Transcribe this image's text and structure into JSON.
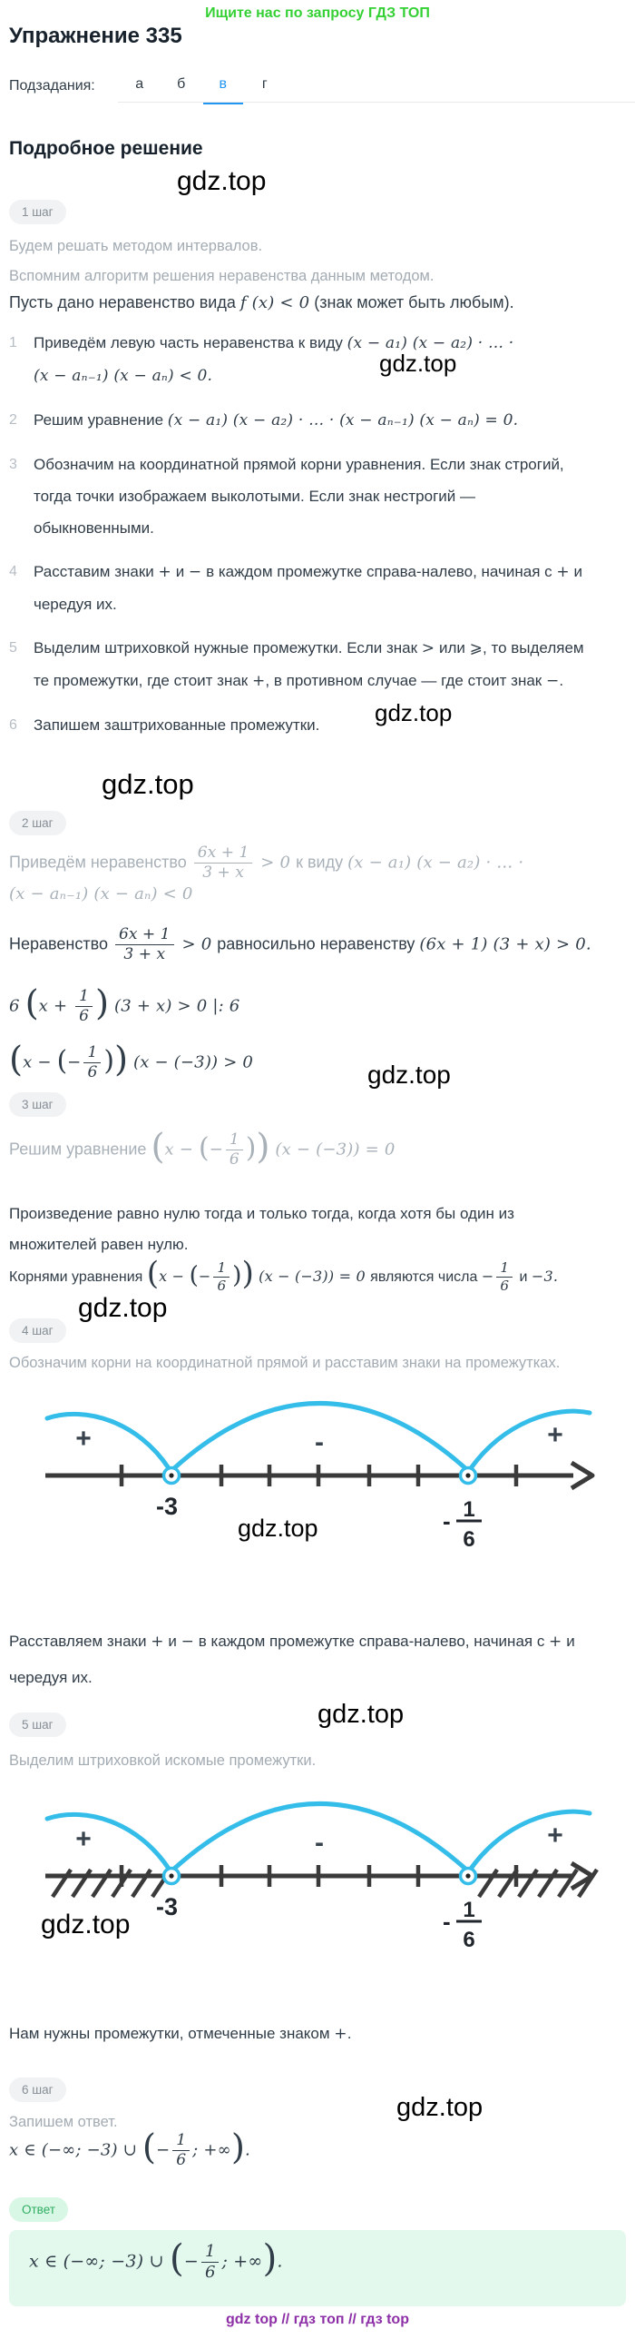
{
  "watermark": "gdz.top",
  "header": {
    "promo": "Ищите нас по запросу ГДЗ ТОП",
    "title": "Упражнение 335",
    "subtasks_label": "Подзадания:",
    "tabs": [
      {
        "label": "а",
        "active": false
      },
      {
        "label": "б",
        "active": false
      },
      {
        "label": "в",
        "active": true
      },
      {
        "label": "г",
        "active": false
      }
    ]
  },
  "solution_heading": "Подробное решение",
  "steps": {
    "s1": {
      "badge": "1 шаг",
      "p1": "Будем решать методом интервалов.",
      "p2": "Вспомним алгоритм решения неравенства данным методом.",
      "intro": [
        {
          "rm": "Пусть дано неравенство вида "
        },
        {
          "m": "f (x) < 0"
        },
        {
          "rm": " (знак может быть любым)."
        }
      ],
      "list": [
        {
          "num": "1",
          "tokens": [
            {
              "rm": "Приведём левую часть неравенства к виду "
            },
            {
              "m": "(x − a₁) (x − a₂) · … ·"
            },
            {
              "br": true
            },
            {
              "m": "(x − aₙ₋₁) (x − aₙ) < 0."
            }
          ]
        },
        {
          "num": "2",
          "tokens": [
            {
              "rm": "Решим уравнение "
            },
            {
              "m": "(x − a₁) (x − a₂) · … · (x − aₙ₋₁) (x − aₙ) = 0."
            }
          ]
        },
        {
          "num": "3",
          "tokens": [
            {
              "rm": "Обозначим на координатной прямой корни уравнения. Если знак строгий, тогда точки изображаем выколотыми. Если знак нестрогий — обыкновенными."
            }
          ]
        },
        {
          "num": "4",
          "tokens": [
            {
              "rm": "Расставим знаки "
            },
            {
              "m": "+"
            },
            {
              "rm": " и "
            },
            {
              "m": "−"
            },
            {
              "rm": " в каждом промежутке справа-налево, начиная с "
            },
            {
              "m": "+"
            },
            {
              "rm": " и чередуя их."
            }
          ]
        },
        {
          "num": "5",
          "tokens": [
            {
              "rm": "Выделим штриховкой нужные промежутки. Если знак "
            },
            {
              "m": ">"
            },
            {
              "rm": " или "
            },
            {
              "m": "⩾"
            },
            {
              "rm": ", то выделяем те промежутки, где стоит знак "
            },
            {
              "m": "+"
            },
            {
              "rm": ", в противном случае — где стоит знак "
            },
            {
              "m": "−"
            },
            {
              "rm": "."
            }
          ]
        },
        {
          "num": "6",
          "tokens": [
            {
              "rm": "Запишем заштрихованные промежутки."
            }
          ]
        }
      ]
    },
    "s2": {
      "badge": "2 шаг",
      "gray": [
        {
          "rm": "Приведём неравенство "
        },
        {
          "frac": [
            "6x + 1",
            "3 + x"
          ]
        },
        {
          "m": " > 0 "
        },
        {
          "rm": "к виду "
        },
        {
          "m": "(x − a₁) (x − a₂) · … ·"
        },
        {
          "br": true
        },
        {
          "m": "(x − aₙ₋₁) (x − aₙ) < 0"
        }
      ],
      "d1": [
        {
          "rm": "Неравенство "
        },
        {
          "frac": [
            "6x + 1",
            "3 + x"
          ]
        },
        {
          "m": " > 0 "
        },
        {
          "rm": "равносильно неравенству "
        },
        {
          "m": "(6x + 1) (3 + x) > 0."
        }
      ],
      "d2": [
        {
          "m": "6 "
        },
        {
          "bp": "("
        },
        {
          "m": "x + "
        },
        {
          "frac": [
            "1",
            "6"
          ]
        },
        {
          "bp": ")"
        },
        {
          "m": " (3 + x) > 0  |: 6"
        }
      ],
      "d3": [
        {
          "bp": "("
        },
        {
          "m": "x − "
        },
        {
          "bp2": "("
        },
        {
          "m": "−"
        },
        {
          "frac": [
            "1",
            "6"
          ]
        },
        {
          "bp2": ")"
        },
        {
          "bp": ")"
        },
        {
          "m": " (x − (−3)) > 0"
        }
      ]
    },
    "s3": {
      "badge": "3 шаг",
      "gray": [
        {
          "rm": "Решим уравнение "
        },
        {
          "bp": "("
        },
        {
          "m": "x − "
        },
        {
          "bp2": "("
        },
        {
          "m": "−"
        },
        {
          "frac": [
            "1",
            "6"
          ]
        },
        {
          "bp2": ")"
        },
        {
          "bp": ")"
        },
        {
          "m": " (x − (−3)) = 0"
        }
      ],
      "d1": "Произведение равно нулю тогда и только тогда, когда хотя бы один из множителей равен нулю.",
      "d2": [
        {
          "rm": "Корнями уравнения "
        },
        {
          "bp": "("
        },
        {
          "m": "x − "
        },
        {
          "bp2": "("
        },
        {
          "m": "−"
        },
        {
          "frac": [
            "1",
            "6"
          ]
        },
        {
          "bp2": ")"
        },
        {
          "bp": ")"
        },
        {
          "m": " (x − (−3)) = 0 "
        },
        {
          "rm": "являются числа "
        },
        {
          "m": "−"
        },
        {
          "frac": [
            "1",
            "6"
          ]
        },
        {
          "rm": " и "
        },
        {
          "m": "−3."
        }
      ]
    },
    "s4": {
      "badge": "4 шаг",
      "gray": "Обозначим корни на координатной прямой и расставим знаки на промежутках.",
      "after": [
        {
          "rm": "Расставляем знаки "
        },
        {
          "m": "+"
        },
        {
          "rm": " и "
        },
        {
          "m": "−"
        },
        {
          "rm": " в каждом промежутке справа-налево, начиная с "
        },
        {
          "m": "+"
        },
        {
          "rm": " и чередуя их."
        }
      ]
    },
    "s5": {
      "badge": "5 шаг",
      "gray": "Выделим штриховкой искомые промежутки.",
      "after": [
        {
          "rm": "Нам нужны промежутки, отмеченные знаком "
        },
        {
          "m": "+"
        },
        {
          "rm": "."
        }
      ]
    },
    "s6": {
      "badge": "6 шаг",
      "gray": "Запишем ответ.",
      "answer_math": [
        {
          "m": "x ∈ (−∞; −3) ∪ "
        },
        {
          "bp": "("
        },
        {
          "m": "−"
        },
        {
          "frac": [
            "1",
            "6"
          ]
        },
        {
          "m": "; +∞"
        },
        {
          "bp": ")"
        },
        {
          "m": "."
        }
      ]
    }
  },
  "answer": {
    "badge": "Ответ"
  },
  "diagrams": {
    "d1": {
      "signs": [
        "+",
        "-",
        "+"
      ],
      "p1_label": "-3",
      "p2_minus": "-",
      "p2_num": "1",
      "p2_den": "6",
      "hatched": false
    },
    "d2": {
      "signs": [
        "+",
        "-",
        "+"
      ],
      "p1_label": "-3",
      "p2_minus": "-",
      "p2_num": "1",
      "p2_den": "6",
      "hatched": true
    }
  },
  "footer": {
    "text": "gdz top  //  гдз топ  //  гдз top"
  },
  "colors": {
    "promo_green": "#34d034",
    "tab_active_blue": "#2196f3",
    "arc_cyan": "#35bdea",
    "axis_dark": "#3a3a3a",
    "answer_box_bg": "#e3f9ed",
    "answer_badge_bg": "#d9f7e5",
    "answer_badge_text": "#2fae62",
    "footer_purple": "#8d2fa6",
    "gray_text": "#a3abb3",
    "dark_text": "#303c47"
  }
}
